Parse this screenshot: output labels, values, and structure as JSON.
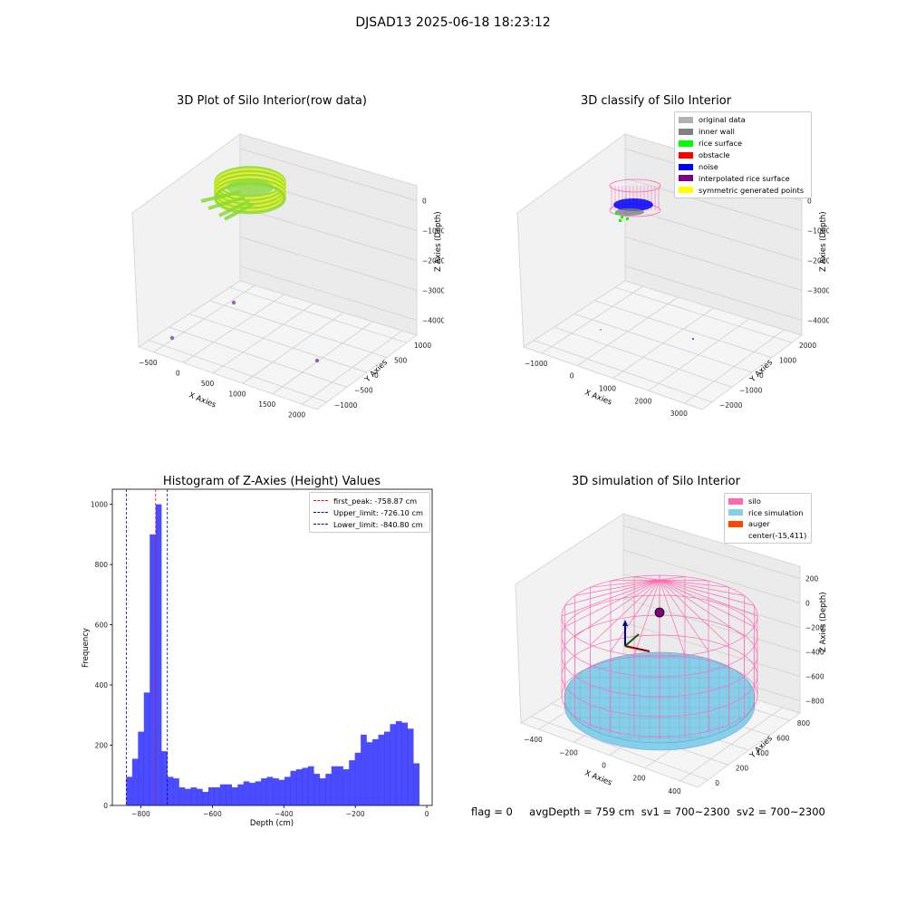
{
  "figure": {
    "suptitle": "DJSAD13 2025-06-18 18:23:12",
    "status": {
      "flag": "flag = 0",
      "avg_depth": "avgDepth = 759 cm",
      "sv1": "sv1 = 700~2300",
      "sv2": "sv2 = 700~2300"
    },
    "colors": {
      "rice_green": "#8bd93a",
      "rice_yellow": "#f2ee1a",
      "scatter_purple": "#7b4fa8",
      "hist_blue": "#0000ff",
      "peak_red": "#ff0000",
      "limit_blue": "#0000cc",
      "silo_pink": "#ff69b4",
      "rice_sim": "#87ceeb",
      "auger": "#ff4500",
      "wall_gray": "#808080",
      "orig_gray": "#b0b0b0"
    }
  },
  "chart_data": [
    {
      "type": "scatter",
      "projection": "3d",
      "title": "3D Plot of Silo Interior(row data)",
      "xlabel": "X Axies",
      "ylabel": "Y Axies",
      "zlabel": "Z Axies (Depth)",
      "xticks": [
        "−500",
        "0",
        "500",
        "1000",
        "1500",
        "2000"
      ],
      "yticks": [
        "1000",
        "500",
        "0",
        "−500",
        "−1000"
      ],
      "zticks": [
        "0",
        "−1000",
        "−2000",
        "−3000",
        "−4000"
      ],
      "ring_center": [
        200,
        0,
        -300
      ],
      "outliers": [
        [
          300,
          500,
          -4200
        ],
        [
          -500,
          -300,
          -4300
        ],
        [
          1900,
          -800,
          -4100
        ]
      ]
    },
    {
      "type": "scatter",
      "projection": "3d",
      "title": "3D classify of Silo Interior",
      "xlabel": "X Axies",
      "ylabel": "Y Axies",
      "zlabel": "Z Axies (Depth)",
      "xticks": [
        "−1000",
        "0",
        "1000",
        "2000",
        "3000"
      ],
      "yticks": [
        "2000",
        "1000",
        "0",
        "−1000",
        "−2000"
      ],
      "zticks": [
        "0",
        "−1000",
        "−2000",
        "−3000",
        "−4000"
      ],
      "legend": {
        "position": "upper-right",
        "entries": [
          {
            "label": "original data",
            "color": "#b0b0b0"
          },
          {
            "label": "inner wall",
            "color": "#808080"
          },
          {
            "label": "rice surface",
            "color": "#00ff00"
          },
          {
            "label": "obstacle",
            "color": "#ff0000"
          },
          {
            "label": "noise",
            "color": "#0000ff"
          },
          {
            "label": "interpolated rice surface",
            "color": "#800080"
          },
          {
            "label": "symmetric generated points",
            "color": "#ffff00"
          }
        ]
      }
    },
    {
      "type": "bar",
      "title": "Histogram of Z-Axies (Height) Values",
      "xlabel": "Depth (cm)",
      "ylabel": "Frequency",
      "xlim": [
        -880,
        15
      ],
      "ylim": [
        0,
        1050
      ],
      "xticks": [
        -800,
        -600,
        -400,
        -200,
        0
      ],
      "xtick_labels": [
        "−800",
        "−600",
        "−400",
        "−200",
        "0"
      ],
      "yticks": [
        0,
        200,
        400,
        600,
        800,
        1000
      ],
      "bin_start": -841,
      "bin_width": 16.4,
      "values": [
        95,
        155,
        245,
        375,
        900,
        1000,
        180,
        95,
        90,
        60,
        55,
        60,
        55,
        45,
        60,
        60,
        70,
        70,
        60,
        70,
        80,
        75,
        80,
        90,
        95,
        90,
        85,
        95,
        115,
        120,
        125,
        130,
        105,
        90,
        105,
        130,
        130,
        120,
        150,
        175,
        235,
        210,
        220,
        235,
        245,
        270,
        280,
        275,
        255,
        140
      ],
      "lines": [
        {
          "label": "first_peak: -758.87 cm",
          "x": -758.87,
          "color": "#ff0000"
        },
        {
          "label": "Upper_limit: -726.10 cm",
          "x": -726.1,
          "color": "#0000cc"
        },
        {
          "label": "Lower_limit: -840.80 cm",
          "x": -840.8,
          "color": "#0000cc"
        }
      ],
      "legend": {
        "position": "upper-right"
      }
    },
    {
      "type": "scatter",
      "projection": "3d",
      "title": "3D simulation of Silo Interior",
      "xlabel": "X Axies",
      "ylabel": "Y Axies",
      "zlabel": "Z Axies (Depth)",
      "xticks": [
        "−400",
        "−200",
        "0",
        "200",
        "400"
      ],
      "yticks": [
        "800",
        "600",
        "400",
        "200",
        "0"
      ],
      "zticks": [
        "200",
        "0",
        "−200",
        "−400",
        "−600",
        "−800"
      ],
      "legend": {
        "position": "upper-right",
        "entries": [
          {
            "label": "silo",
            "color": "#ff69b4"
          },
          {
            "label": "rice simulation",
            "color": "#87ceeb"
          },
          {
            "label": "auger",
            "color": "#ff4500"
          },
          {
            "label": "center(-15,411)",
            "color": ""
          }
        ]
      }
    }
  ]
}
